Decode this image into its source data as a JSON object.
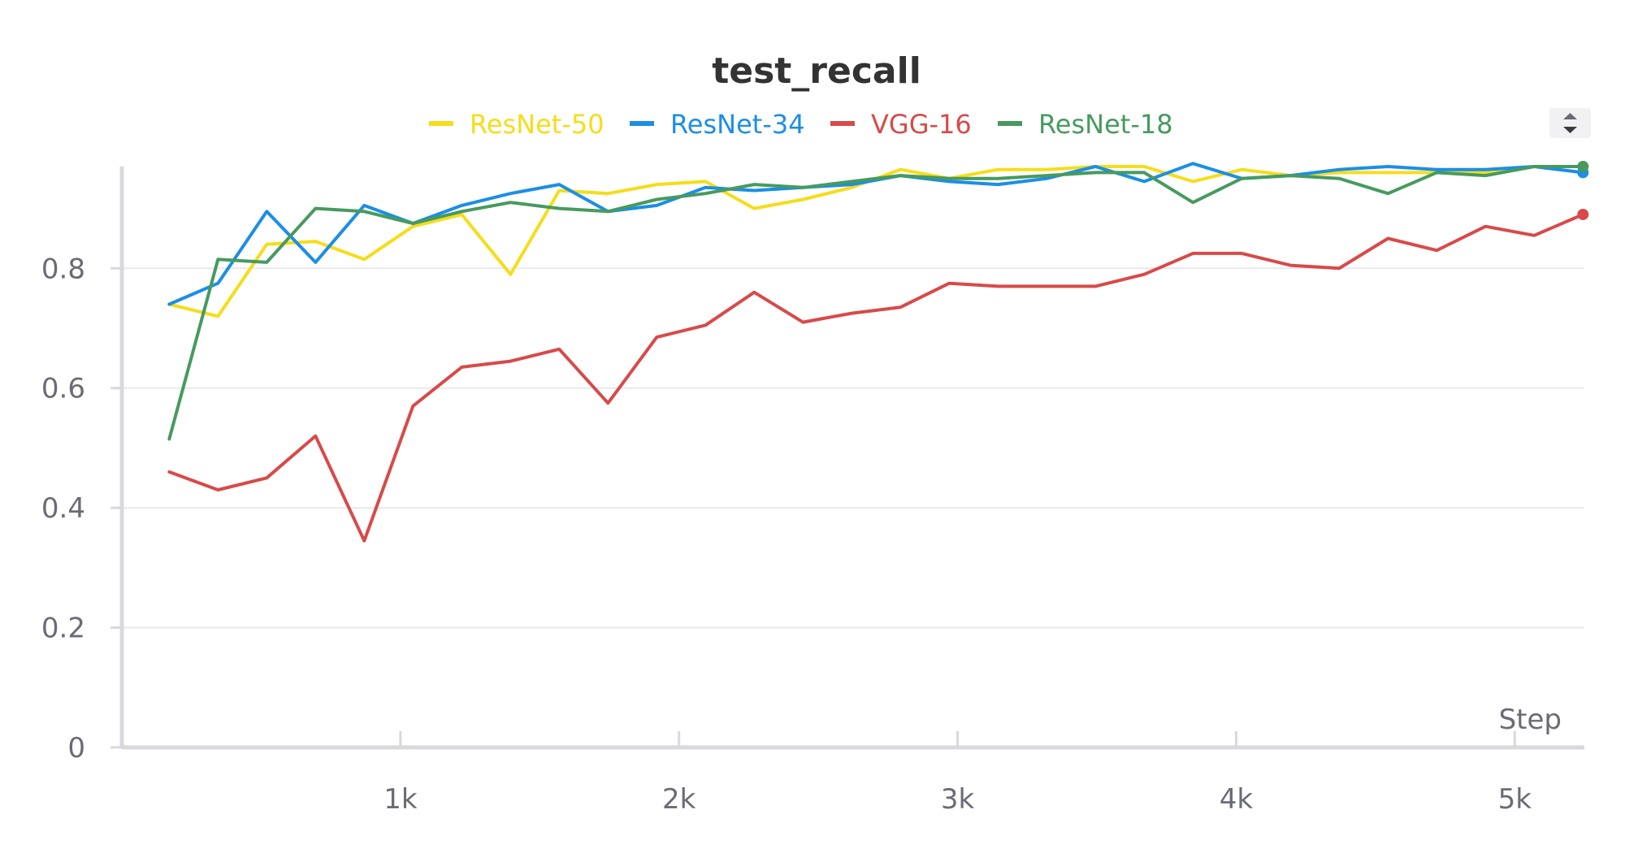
{
  "chart_data": {
    "type": "line",
    "title": "test_recall",
    "xlabel": "Step",
    "ylabel": "",
    "xlim": [
      0,
      5250
    ],
    "ylim": [
      0,
      0.97
    ],
    "xticks": [
      1000,
      2000,
      3000,
      4000,
      5000
    ],
    "xtick_labels": [
      "1k",
      "2k",
      "3k",
      "4k",
      "5k"
    ],
    "yticks": [
      0,
      0.2,
      0.4,
      0.6,
      0.8
    ],
    "ytick_labels": [
      "0",
      "0.2",
      "0.4",
      "0.6",
      "0.8"
    ],
    "grid": true,
    "legend_position": "top",
    "x": [
      170,
      345,
      520,
      695,
      870,
      1045,
      1220,
      1395,
      1570,
      1745,
      1920,
      2095,
      2270,
      2445,
      2620,
      2795,
      2970,
      3145,
      3320,
      3495,
      3670,
      3845,
      4020,
      4195,
      4370,
      4545,
      4720,
      4895,
      5070,
      5245
    ],
    "series": [
      {
        "name": "ResNet-50",
        "color": "#f5dd1a",
        "values": [
          0.74,
          0.72,
          0.84,
          0.845,
          0.815,
          0.87,
          0.89,
          0.79,
          0.93,
          0.925,
          0.94,
          0.945,
          0.9,
          0.915,
          0.935,
          0.965,
          0.95,
          0.965,
          0.965,
          0.97,
          0.97,
          0.945,
          0.965,
          0.955,
          0.96,
          0.96,
          0.96,
          0.96,
          0.97,
          0.97
        ]
      },
      {
        "name": "ResNet-34",
        "color": "#1c8ee6",
        "values": [
          0.74,
          0.775,
          0.895,
          0.81,
          0.905,
          0.875,
          0.905,
          0.925,
          0.94,
          0.895,
          0.905,
          0.935,
          0.93,
          0.935,
          0.94,
          0.955,
          0.945,
          0.94,
          0.95,
          0.97,
          0.945,
          0.975,
          0.95,
          0.955,
          0.965,
          0.97,
          0.965,
          0.965,
          0.97,
          0.96
        ]
      },
      {
        "name": "VGG-16",
        "color": "#d84a4a",
        "values": [
          0.46,
          0.43,
          0.45,
          0.52,
          0.345,
          0.57,
          0.635,
          0.645,
          0.665,
          0.575,
          0.685,
          0.705,
          0.76,
          0.71,
          0.725,
          0.735,
          0.775,
          0.77,
          0.77,
          0.77,
          0.79,
          0.825,
          0.825,
          0.805,
          0.8,
          0.85,
          0.83,
          0.87,
          0.855,
          0.89
        ]
      },
      {
        "name": "ResNet-18",
        "color": "#479a5f",
        "values": [
          0.515,
          0.815,
          0.81,
          0.9,
          0.895,
          0.875,
          0.895,
          0.91,
          0.9,
          0.895,
          0.915,
          0.925,
          0.94,
          0.935,
          0.945,
          0.955,
          0.95,
          0.95,
          0.955,
          0.96,
          0.96,
          0.91,
          0.95,
          0.955,
          0.95,
          0.925,
          0.96,
          0.955,
          0.97,
          0.97
        ]
      }
    ]
  }
}
